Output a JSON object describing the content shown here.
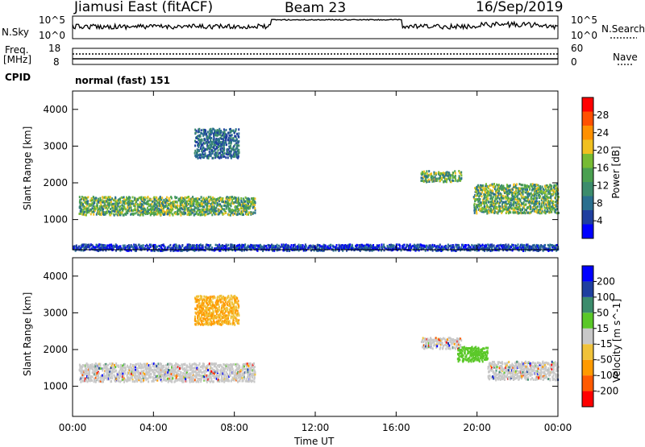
{
  "header": {
    "station": "Jiamusi East (fitACF)",
    "beam": "Beam 23",
    "date": "16/Sep/2019"
  },
  "aux_panels": {
    "nsky_label": "N.Sky",
    "nsky_ticks": [
      "10^5",
      "10^0"
    ],
    "nsearch_label": "N.Search",
    "freq_label": "Freq.",
    "freq_unit": "[MHz]",
    "freq_ticks": [
      "18",
      "8"
    ],
    "nave_label": "Nave",
    "nave_ticks": [
      "60",
      "0"
    ],
    "cpid_label": "CPID",
    "cpid_value": "normal (fast) 151"
  },
  "colors": {
    "power_scale": [
      "#0000ff",
      "#1f3f9f",
      "#2a6f8f",
      "#3c8c6c",
      "#4aa050",
      "#77bb33",
      "#f0c020",
      "#ff9000",
      "#ff5000",
      "#ff0000"
    ],
    "velocity_scale": [
      "#ff0000",
      "#ff5a00",
      "#ff9a00",
      "#f0c23a",
      "#c8c8c8",
      "#5ac828",
      "#3c8c6c",
      "#1f3f9f",
      "#0000ff"
    ]
  },
  "chart_data": [
    {
      "type": "heatmap",
      "name": "power",
      "xlabel": "Time UT",
      "ylabel": "Slant Range [km]",
      "x_ticks": [
        "00:00",
        "04:00",
        "08:00",
        "12:00",
        "16:00",
        "20:00",
        "00:00"
      ],
      "x_range_hours": [
        0,
        24
      ],
      "y_ticks": [
        1000,
        2000,
        3000,
        4000
      ],
      "ylim": [
        180,
        4500
      ],
      "colorbar": {
        "label": "Power [dB]",
        "ticks": [
          4,
          8,
          12,
          16,
          20,
          24,
          28
        ],
        "range": [
          0,
          32
        ]
      },
      "regions": [
        {
          "x": [
            0.3,
            9.0
          ],
          "y": [
            1150,
            1650
          ],
          "level": "strong"
        },
        {
          "x": [
            6.0,
            8.2
          ],
          "y": [
            2700,
            3500
          ],
          "level": "medium"
        },
        {
          "x": [
            17.2,
            19.2
          ],
          "y": [
            2050,
            2350
          ],
          "level": "strong"
        },
        {
          "x": [
            19.8,
            24.0
          ],
          "y": [
            1200,
            2000
          ],
          "level": "strong"
        },
        {
          "x": [
            0.0,
            24.0
          ],
          "y": [
            180,
            350
          ],
          "level": "weak"
        }
      ]
    },
    {
      "type": "heatmap",
      "name": "velocity",
      "xlabel": "Time UT",
      "ylabel": "Slant Range [km]",
      "x_ticks": [
        "00:00",
        "04:00",
        "08:00",
        "12:00",
        "16:00",
        "20:00",
        "00:00"
      ],
      "x_range_hours": [
        0,
        24
      ],
      "y_ticks": [
        1000,
        2000,
        3000,
        4000
      ],
      "ylim": [
        180,
        4500
      ],
      "colorbar": {
        "label": "Velocity [m s^-1]",
        "ticks": [
          -200,
          -100,
          -50,
          -15,
          15,
          50,
          100,
          200
        ]
      },
      "regions": [
        {
          "x": [
            0.3,
            9.0
          ],
          "y": [
            1150,
            1650
          ],
          "level": "near-zero"
        },
        {
          "x": [
            6.0,
            8.2
          ],
          "y": [
            2700,
            3500
          ],
          "level": "negative"
        },
        {
          "x": [
            17.2,
            19.2
          ],
          "y": [
            2050,
            2350
          ],
          "level": "near-zero"
        },
        {
          "x": [
            19.0,
            20.5
          ],
          "y": [
            1700,
            2100
          ],
          "level": "positive"
        },
        {
          "x": [
            20.5,
            24.0
          ],
          "y": [
            1200,
            1700
          ],
          "level": "near-zero"
        }
      ]
    }
  ]
}
